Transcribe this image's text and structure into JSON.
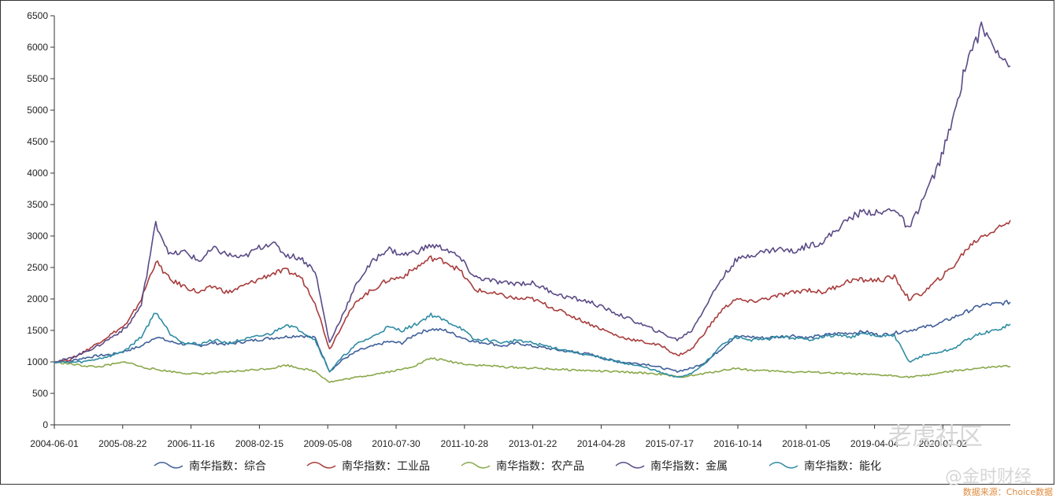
{
  "chart_data": {
    "type": "line",
    "title": "",
    "xlabel": "",
    "ylabel": "",
    "ylim": [
      0,
      6500
    ],
    "y_ticks": [
      0,
      500,
      1000,
      1500,
      2000,
      2500,
      3000,
      3500,
      4000,
      4500,
      5000,
      5500,
      6000,
      6500
    ],
    "x_tick_labels": [
      "2004-06-01",
      "2005-08-22",
      "2006-11-16",
      "2008-02-15",
      "2009-05-08",
      "2010-07-30",
      "2011-10-28",
      "2013-01-22",
      "2014-04-28",
      "2015-07-17",
      "2016-10-14",
      "2018-01-05",
      "2019-04-04",
      "2020-07-02"
    ],
    "grid": false,
    "legend_position": "bottom",
    "series": [
      {
        "name": "南华指数：综合",
        "color": "#3f5f9a",
        "values": [
          1000,
          1010,
          1060,
          1100,
          1120,
          1180,
          1250,
          1400,
          1320,
          1280,
          1260,
          1300,
          1280,
          1320,
          1350,
          1380,
          1400,
          1420,
          1380,
          850,
          1050,
          1180,
          1250,
          1320,
          1300,
          1450,
          1520,
          1500,
          1400,
          1320,
          1300,
          1250,
          1300,
          1250,
          1220,
          1180,
          1150,
          1120,
          1050,
          1000,
          980,
          960,
          900,
          850,
          900,
          1000,
          1200,
          1400,
          1400,
          1380,
          1400,
          1420,
          1380,
          1420,
          1450,
          1460,
          1480,
          1420,
          1460,
          1500,
          1550,
          1600,
          1700,
          1800,
          1900,
          1920,
          1950
        ]
      },
      {
        "name": "南华指数：工业品",
        "color": "#a83c3c",
        "values": [
          1000,
          1030,
          1150,
          1300,
          1450,
          1600,
          2000,
          2600,
          2300,
          2200,
          2100,
          2200,
          2100,
          2200,
          2300,
          2400,
          2450,
          2350,
          1950,
          1200,
          1650,
          2000,
          2150,
          2300,
          2350,
          2500,
          2650,
          2600,
          2450,
          2150,
          2100,
          2050,
          2000,
          2000,
          1900,
          1800,
          1700,
          1600,
          1500,
          1400,
          1350,
          1300,
          1250,
          1100,
          1200,
          1500,
          1800,
          2000,
          1950,
          2000,
          2050,
          2100,
          2150,
          2100,
          2200,
          2300,
          2300,
          2300,
          2350,
          2000,
          2100,
          2300,
          2500,
          2800,
          3000,
          3100,
          3250
        ]
      },
      {
        "name": "南华指数：农产品",
        "color": "#8aa84a",
        "values": [
          1000,
          970,
          940,
          920,
          960,
          1000,
          920,
          880,
          850,
          820,
          810,
          820,
          840,
          860,
          880,
          900,
          950,
          900,
          850,
          680,
          720,
          760,
          800,
          840,
          880,
          950,
          1060,
          1020,
          980,
          950,
          940,
          920,
          910,
          900,
          890,
          880,
          870,
          860,
          850,
          840,
          830,
          820,
          800,
          760,
          780,
          820,
          860,
          900,
          870,
          860,
          850,
          840,
          840,
          830,
          820,
          810,
          800,
          790,
          780,
          760,
          780,
          820,
          850,
          880,
          900,
          920,
          930
        ]
      },
      {
        "name": "南华指数：金属",
        "color": "#5b4a86",
        "values": [
          1000,
          1050,
          1150,
          1250,
          1400,
          1550,
          1900,
          3200,
          2700,
          2750,
          2600,
          2800,
          2700,
          2650,
          2800,
          2900,
          2700,
          2650,
          2450,
          1300,
          1800,
          2300,
          2600,
          2800,
          2700,
          2750,
          2850,
          2800,
          2650,
          2350,
          2300,
          2250,
          2250,
          2250,
          2150,
          2050,
          2000,
          1950,
          1850,
          1750,
          1650,
          1550,
          1450,
          1350,
          1500,
          1900,
          2300,
          2600,
          2700,
          2750,
          2800,
          2750,
          2850,
          2900,
          3100,
          3300,
          3400,
          3350,
          3450,
          3100,
          3600,
          4100,
          4800,
          5800,
          6300,
          6000,
          5700
        ]
      },
      {
        "name": "南华指数：能化",
        "color": "#2f8ca4",
        "values": [
          1000,
          990,
          1000,
          1050,
          1100,
          1200,
          1400,
          1800,
          1450,
          1300,
          1280,
          1350,
          1300,
          1350,
          1400,
          1450,
          1600,
          1500,
          1350,
          850,
          1100,
          1300,
          1400,
          1550,
          1500,
          1600,
          1750,
          1650,
          1550,
          1350,
          1350,
          1300,
          1350,
          1300,
          1250,
          1200,
          1150,
          1100,
          1050,
          1000,
          950,
          900,
          820,
          750,
          820,
          1000,
          1250,
          1400,
          1350,
          1350,
          1400,
          1380,
          1350,
          1400,
          1420,
          1400,
          1450,
          1400,
          1420,
          1000,
          1100,
          1150,
          1200,
          1350,
          1450,
          1500,
          1600
        ]
      }
    ]
  },
  "watermark": {
    "line1": "老虎社区",
    "line2": "@金时财经"
  },
  "source_note": "数据来源：Choice数据"
}
